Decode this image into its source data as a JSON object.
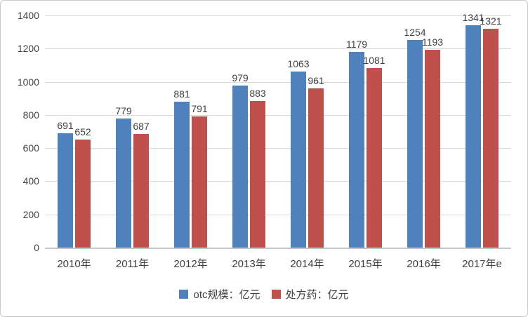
{
  "chart_data": {
    "type": "bar",
    "categories": [
      "2010年",
      "2011年",
      "2012年",
      "2013年",
      "2014年",
      "2015年",
      "2016年",
      "2017年e"
    ],
    "series": [
      {
        "name": "otc规模：亿元",
        "color": "#4f81bd",
        "values": [
          691,
          779,
          881,
          979,
          1063,
          1179,
          1254,
          1341
        ]
      },
      {
        "name": "处方药：亿元",
        "color": "#c0504d",
        "values": [
          652,
          687,
          791,
          883,
          961,
          1081,
          1193,
          1321
        ]
      }
    ],
    "title": "",
    "xlabel": "",
    "ylabel": "",
    "ylim": [
      0,
      1400
    ],
    "yticks": [
      0,
      200,
      400,
      600,
      800,
      1000,
      1200,
      1400
    ],
    "grid": true,
    "data_labels": true,
    "legend_position": "bottom"
  },
  "colors": {
    "gridline": "#d9d9d9",
    "axis_line": "#c3c7cb",
    "text": "#404040",
    "tick_text": "#444444",
    "border": "#c9c9c9",
    "background": "#ffffff"
  }
}
